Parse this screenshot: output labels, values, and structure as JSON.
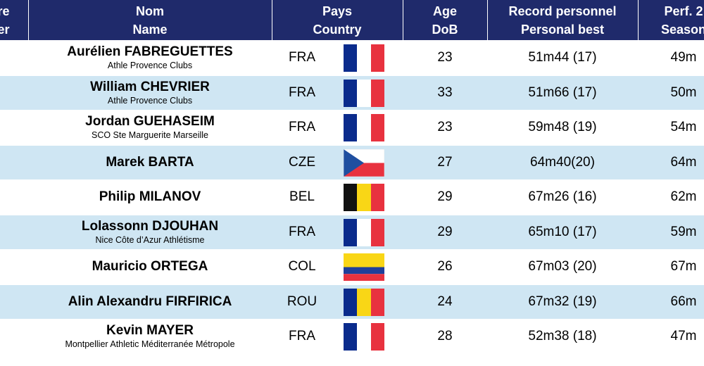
{
  "header": {
    "col0": [
      "re",
      "er"
    ],
    "col1": [
      "Nom",
      "Name"
    ],
    "col2": [
      "Pays",
      "Country"
    ],
    "col3": [
      "Age",
      "DoB"
    ],
    "col4": [
      "Record personnel",
      "Personal best"
    ],
    "col5": [
      "Perf. 2",
      "Season"
    ]
  },
  "rows": [
    {
      "name": "Aurélien FABREGUETTES",
      "club": "Athle Provence Clubs",
      "country": "FRA",
      "flag": "france",
      "age": "23",
      "pb": "51m44 (17)",
      "season": "49m"
    },
    {
      "name": "William CHEVRIER",
      "club": "Athle Provence Clubs",
      "country": "FRA",
      "flag": "france",
      "age": "33",
      "pb": "51m66 (17)",
      "season": "50m"
    },
    {
      "name": "Jordan GUEHASEIM",
      "club": "SCO Ste Marguerite Marseille",
      "country": "FRA",
      "flag": "france",
      "age": "23",
      "pb": "59m48 (19)",
      "season": "54m"
    },
    {
      "name": "Marek BARTA",
      "club": "",
      "country": "CZE",
      "flag": "czech",
      "age": "27",
      "pb": "64m40(20)",
      "season": "64m"
    },
    {
      "name": "Philip MILANOV",
      "club": "",
      "country": "BEL",
      "flag": "belgium",
      "age": "29",
      "pb": "67m26 (16)",
      "season": "62m"
    },
    {
      "name": "Lolassonn DJOUHAN",
      "club": "Nice Côte d’Azur Athlétisme",
      "country": "FRA",
      "flag": "france",
      "age": "29",
      "pb": "65m10 (17)",
      "season": "59m"
    },
    {
      "name": "Mauricio ORTEGA",
      "club": "",
      "country": "COL",
      "flag": "colombia",
      "age": "26",
      "pb": "67m03 (20)",
      "season": "67m"
    },
    {
      "name": "Alin Alexandru FIRFIRICA",
      "club": "",
      "country": "ROU",
      "flag": "romania",
      "age": "24",
      "pb": "67m32 (19)",
      "season": "66m"
    },
    {
      "name": "Kevin MAYER",
      "club": "Montpellier Athletic Méditerranée Métropole",
      "country": "FRA",
      "flag": "france",
      "age": "28",
      "pb": "52m38 (18)",
      "season": "47m"
    }
  ],
  "colors": {
    "header_bg": "#1f2a6b",
    "row_alt": "#cfe6f3",
    "blue": "#0a2b8c",
    "red": "#e8323f",
    "yellow": "#f9d616",
    "black": "#111111"
  }
}
